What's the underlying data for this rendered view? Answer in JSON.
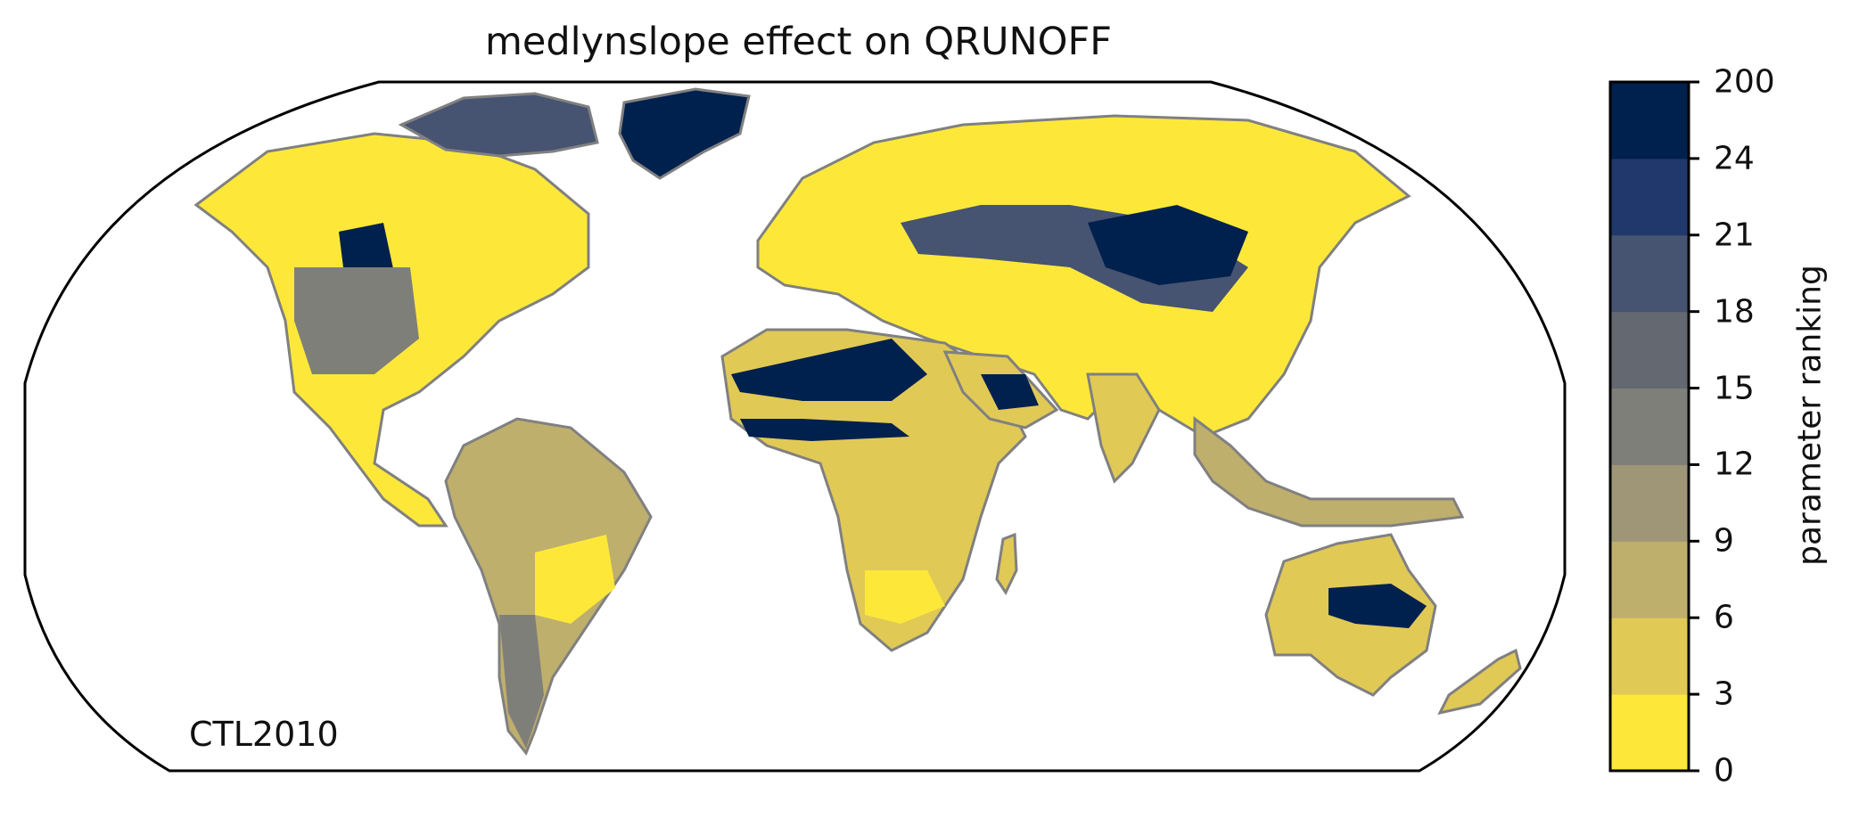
{
  "title": "medlynslope effect on QRUNOFF",
  "scenario": "CTL2010",
  "colorbar": {
    "label": "parameter ranking",
    "ticks": [
      "0",
      "3",
      "6",
      "9",
      "12",
      "15",
      "18",
      "21",
      "24",
      "200"
    ],
    "colors": [
      "#fde83a",
      "#e1c956",
      "#bfaf6d",
      "#9e9677",
      "#7f7f7a",
      "#646870",
      "#465371",
      "#21386d",
      "#00204d"
    ]
  },
  "colors": {
    "coastline": "#808080",
    "frame": "#000000",
    "background": "#ffffff"
  }
}
